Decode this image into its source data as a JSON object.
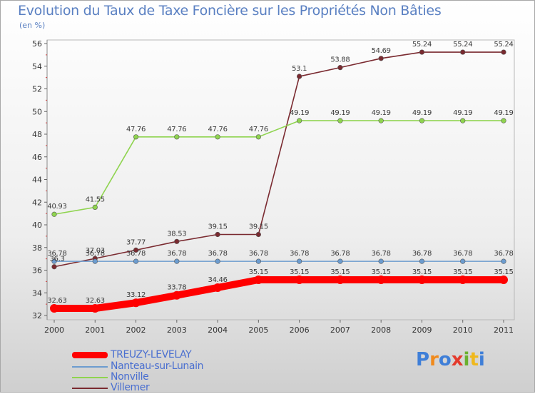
{
  "title": "Evolution du Taux de Taxe Foncière sur les Propriétés Non Bâties",
  "subtitle": "(en %)",
  "logo_text": "Proxiti",
  "chart_data": {
    "type": "line",
    "x": [
      "2000",
      "2001",
      "2002",
      "2003",
      "2004",
      "2005",
      "2006",
      "2007",
      "2008",
      "2009",
      "2010",
      "2011"
    ],
    "ylim": [
      32,
      56
    ],
    "yticks": [
      32,
      34,
      36,
      38,
      40,
      42,
      44,
      46,
      48,
      50,
      52,
      54,
      56
    ],
    "grid": false,
    "legend_position": "bottom-left",
    "series": [
      {
        "name": "TREUZY-LEVELAY",
        "color": "#ff0000",
        "values": [
          32.63,
          32.63,
          33.12,
          33.78,
          34.46,
          35.15,
          35.15,
          35.15,
          35.15,
          35.15,
          35.15,
          35.15
        ],
        "labels": [
          "32.63",
          "32.63",
          "33.12",
          "33.78",
          "34.46",
          "35.15",
          "35.15",
          "35.15",
          "35.15",
          "35.15",
          "35.15",
          "35.15"
        ]
      },
      {
        "name": "Nanteau-sur-Lunain",
        "color": "#6c9ccf",
        "values": [
          36.78,
          36.78,
          36.78,
          36.78,
          36.78,
          36.78,
          36.78,
          36.78,
          36.78,
          36.78,
          36.78,
          36.78
        ],
        "labels": [
          "36.78",
          "36.78",
          "36.78",
          "36.78",
          "36.78",
          "36.78",
          "36.78",
          "36.78",
          "36.78",
          "36.78",
          "36.78",
          "36.78"
        ]
      },
      {
        "name": "Nonville",
        "color": "#8fd44f",
        "values": [
          40.93,
          41.55,
          47.76,
          47.76,
          47.76,
          47.76,
          49.19,
          49.19,
          49.19,
          49.19,
          49.19,
          49.19
        ],
        "labels": [
          "40.93",
          "41.55",
          "47.76",
          "47.76",
          "47.76",
          "47.76",
          "49.19",
          "49.19",
          "49.19",
          "49.19",
          "49.19",
          "49.19"
        ]
      },
      {
        "name": "Villemer",
        "color": "#7a2a30",
        "values": [
          36.3,
          37.03,
          37.77,
          38.53,
          39.15,
          39.15,
          53.1,
          53.88,
          54.69,
          55.24,
          55.24,
          55.24
        ],
        "labels": [
          "36.3",
          "37.03",
          "37.77",
          "38.53",
          "39.15",
          "39.15",
          "53.1",
          "53.88",
          "54.69",
          "55.24",
          "55.24",
          "55.24"
        ]
      }
    ]
  }
}
